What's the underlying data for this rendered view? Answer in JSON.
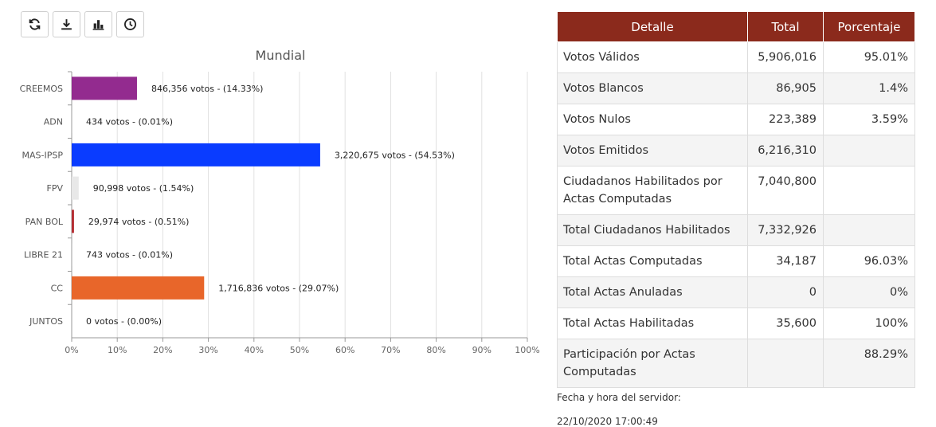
{
  "toolbar": {
    "buttons": [
      {
        "name": "refresh-button",
        "icon": "refresh-icon"
      },
      {
        "name": "download-button",
        "icon": "download-icon"
      },
      {
        "name": "chart-button",
        "icon": "bar-chart-icon"
      },
      {
        "name": "history-button",
        "icon": "clock-icon"
      }
    ]
  },
  "chart_data": {
    "type": "bar",
    "orientation": "horizontal",
    "title": "Mundial",
    "categories": [
      "CREEMOS",
      "ADN",
      "MAS-IPSP",
      "FPV",
      "PAN BOL",
      "LIBRE 21",
      "CC",
      "JUNTOS"
    ],
    "values": [
      14.33,
      0.01,
      54.53,
      1.54,
      0.51,
      0.01,
      29.07,
      0.0
    ],
    "votes": [
      "846,356",
      "434",
      "3,220,675",
      "90,998",
      "29,974",
      "743",
      "1,716,836",
      "0"
    ],
    "labels": [
      "846,356 votos - (14.33%)",
      "434 votos - (0.01%)",
      "3,220,675 votos - (54.53%)",
      "90,998 votos - (1.54%)",
      "29,974 votos - (0.51%)",
      "743 votos - (0.01%)",
      "1,716,836 votos - (29.07%)",
      "0 votos - (0.00%)"
    ],
    "colors": [
      "#932b8f",
      "#cccccc",
      "#0a3cff",
      "#e8e8e8",
      "#b52e33",
      "#cccccc",
      "#e8662a",
      "#cccccc"
    ],
    "xlim": [
      0,
      100
    ],
    "xticks": [
      "0%",
      "10%",
      "20%",
      "30%",
      "40%",
      "50%",
      "60%",
      "70%",
      "80%",
      "90%",
      "100%"
    ],
    "grid": true
  },
  "table": {
    "headers": [
      "Detalle",
      "Total",
      "Porcentaje"
    ],
    "rows": [
      {
        "detalle": "Votos Válidos",
        "total": "5,906,016",
        "porcentaje": "95.01%"
      },
      {
        "detalle": "Votos Blancos",
        "total": "86,905",
        "porcentaje": "1.4%"
      },
      {
        "detalle": "Votos Nulos",
        "total": "223,389",
        "porcentaje": "3.59%"
      },
      {
        "detalle": "Votos Emitidos",
        "total": "6,216,310",
        "porcentaje": ""
      },
      {
        "detalle": "Ciudadanos Habilitados por Actas Computadas",
        "total": "7,040,800",
        "porcentaje": ""
      },
      {
        "detalle": "Total Ciudadanos Habilitados",
        "total": "7,332,926",
        "porcentaje": ""
      },
      {
        "detalle": "Total Actas Computadas",
        "total": "34,187",
        "porcentaje": "96.03%"
      },
      {
        "detalle": "Total Actas Anuladas",
        "total": "0",
        "porcentaje": "0%"
      },
      {
        "detalle": "Total Actas Habilitadas",
        "total": "35,600",
        "porcentaje": "100%"
      },
      {
        "detalle": "Participación por Actas Computadas",
        "total": "",
        "porcentaje": "88.29%"
      }
    ]
  },
  "server": {
    "label": "Fecha y hora del servidor:",
    "datetime": "22/10/2020 17:00:49"
  },
  "colors": {
    "table_header": "#8b2a1c"
  }
}
